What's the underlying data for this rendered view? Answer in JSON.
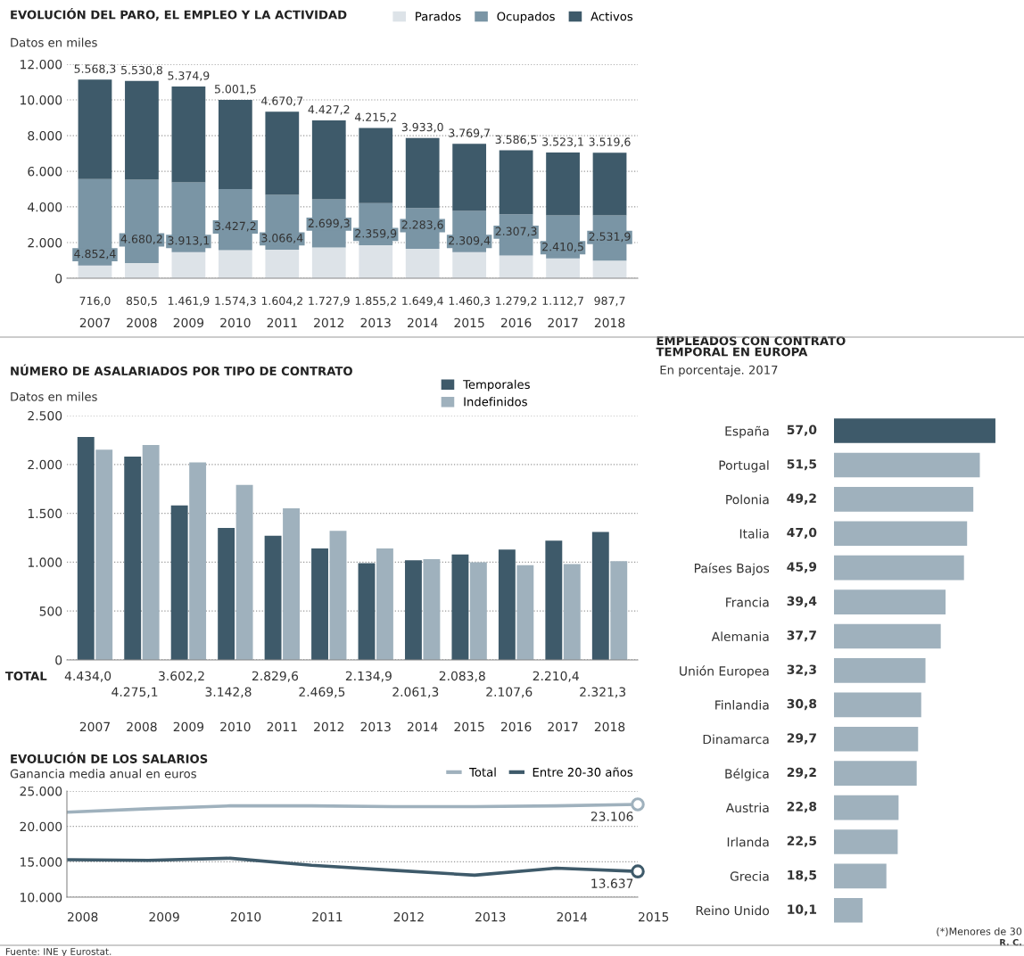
{
  "chart_data": [
    {
      "type": "bar",
      "stacked": true,
      "title": "EVOLUCIÓN DEL PARO, EL EMPLEO Y LA ACTIVIDAD",
      "subtitle": "Datos en miles",
      "categories": [
        "2007",
        "2008",
        "2009",
        "2010",
        "2011",
        "2012",
        "2013",
        "2014",
        "2015",
        "2016",
        "2017",
        "2018"
      ],
      "series": [
        {
          "name": "Parados",
          "color": "#dde3e8",
          "values": [
            716.0,
            850.5,
            1461.9,
            1574.3,
            1604.2,
            1727.9,
            1855.2,
            1649.4,
            1460.3,
            1279.2,
            1112.7,
            987.7
          ],
          "value_labels": [
            "716,0",
            "850,5",
            "1.461,9",
            "1.574,3",
            "1.604,2",
            "1.727,9",
            "1.855,2",
            "1.649,4",
            "1.460,3",
            "1.279,2",
            "1.112,7",
            "987,7"
          ]
        },
        {
          "name": "Ocupados",
          "color": "#7a95a5",
          "values": [
            4852.4,
            4680.2,
            3913.1,
            3427.2,
            3066.4,
            2699.3,
            2359.9,
            2283.6,
            2309.4,
            2307.3,
            2410.5,
            2531.9
          ],
          "value_labels": [
            "4.852,4",
            "4.680,2",
            "3.913,1",
            "3.427,2",
            "3.066,4",
            "2.699,3",
            "2.359,9",
            "2.283,6",
            "2.309,4",
            "2.307,3",
            "2.410,5",
            "2.531,9"
          ]
        },
        {
          "name": "Activos",
          "color": "#3e5a6a",
          "values": [
            5568.3,
            5530.8,
            5374.9,
            5001.5,
            4670.7,
            4427.2,
            4215.2,
            3933.0,
            3769.7,
            3586.5,
            3523.1,
            3519.6
          ],
          "value_labels": [
            "5.568,3",
            "5.530,8",
            "5.374,9",
            "5.001,5",
            "4.670,7",
            "4.427,2",
            "4.215,2",
            "3.933,0",
            "3.769,7",
            "3.586,5",
            "3.523,1",
            "3.519,6"
          ]
        }
      ],
      "ylim": [
        0,
        12000
      ],
      "yticks": [
        {
          "value": 0,
          "label": "0"
        },
        {
          "value": 2000,
          "label": "2.000"
        },
        {
          "value": 4000,
          "label": "4.000"
        },
        {
          "value": 6000,
          "label": "6.000"
        },
        {
          "value": 8000,
          "label": "8.000"
        },
        {
          "value": 10000,
          "label": "10.000"
        },
        {
          "value": 12000,
          "label": "12.000"
        }
      ],
      "grid": "y",
      "legend": "top right"
    },
    {
      "type": "bar",
      "title": "NÚMERO DE ASALARIADOS POR TIPO DE CONTRATO",
      "subtitle": "Datos en miles",
      "categories": [
        "2007",
        "2008",
        "2009",
        "2010",
        "2011",
        "2012",
        "2013",
        "2014",
        "2015",
        "2016",
        "2017",
        "2018"
      ],
      "series": [
        {
          "name": "Temporales",
          "color": "#3e5a6a",
          "values": [
            2280,
            2080,
            1580,
            1350,
            1270,
            1140,
            990,
            1020,
            1080,
            1130,
            1220,
            1310
          ]
        },
        {
          "name": "Indefinidos",
          "color": "#9fb1bd",
          "values": [
            2150,
            2200,
            2020,
            1790,
            1550,
            1320,
            1140,
            1030,
            1000,
            970,
            980,
            1010
          ]
        }
      ],
      "annotations": [
        "TOTAL",
        "4.434,0",
        "4.275,1",
        "3.602,2",
        "3.142,8",
        "2.829,6",
        "2.469,5",
        "2.134,9",
        "2.061,3",
        "2.083,8",
        "2.107,6",
        "2.210,4",
        "2.321,3"
      ],
      "ylim": [
        0,
        2500
      ],
      "yticks": [
        {
          "value": 0,
          "label": "0"
        },
        {
          "value": 500,
          "label": "500"
        },
        {
          "value": 1000,
          "label": "1.000"
        },
        {
          "value": 1500,
          "label": "1.500"
        },
        {
          "value": 2000,
          "label": "2.000"
        },
        {
          "value": 2500,
          "label": "2.500"
        }
      ],
      "grid": "y",
      "legend": "top right"
    },
    {
      "type": "line",
      "title": "EVOLUCIÓN DE LOS SALARIOS",
      "subtitle": "Ganancia media anual en euros",
      "categories": [
        "2008",
        "2009",
        "2010",
        "2011",
        "2012",
        "2013",
        "2014",
        "2015"
      ],
      "series": [
        {
          "name": "Total",
          "color": "#9fb1bd",
          "values": [
            22000,
            22500,
            22900,
            22900,
            22800,
            22800,
            22900,
            23106
          ],
          "value_labels": [
            null,
            null,
            null,
            null,
            null,
            null,
            null,
            "23.106"
          ]
        },
        {
          "name": "Entre 20-30 años",
          "color": "#3e5a6a",
          "values": [
            15300,
            15200,
            15500,
            14500,
            13800,
            13100,
            14100,
            13637
          ],
          "value_labels": [
            null,
            null,
            null,
            null,
            null,
            null,
            null,
            "13.637"
          ]
        }
      ],
      "annotations": [
        "Fuente: INE y Eurostat."
      ],
      "ylim": [
        10000,
        25000
      ],
      "yticks": [
        {
          "value": 10000,
          "label": "10.000"
        },
        {
          "value": 15000,
          "label": "15.000"
        },
        {
          "value": 20000,
          "label": "20.000"
        },
        {
          "value": 25000,
          "label": "25.000"
        }
      ],
      "grid": "y",
      "legend": "top right",
      "line_style": "solid"
    },
    {
      "type": "bar",
      "orientation": "horizontal",
      "title": "EMPLEADOS CON CONTRATO\nTEMPORAL EN EUROPA",
      "subtitle": "En porcentaje. 2017",
      "categories": [
        "España",
        "Portugal",
        "Polonia",
        "Italia",
        "Países Bajos",
        "Francia",
        "Alemania",
        "Unión Europea",
        "Finlandia",
        "Dinamarca",
        "Bélgica",
        "Austria",
        "Irlanda",
        "Grecia",
        "Reino Unido"
      ],
      "values": [
        57.0,
        51.5,
        49.2,
        47.0,
        45.9,
        39.4,
        37.7,
        32.3,
        30.8,
        29.7,
        29.2,
        22.8,
        22.5,
        18.5,
        10.1
      ],
      "value_labels": [
        "57,0",
        "51,5",
        "49,2",
        "47,0",
        "45,9",
        "39,4",
        "37,7",
        "32,3",
        "30,8",
        "29,7",
        "29,2",
        "22,8",
        "22,5",
        "18,5",
        "10,1"
      ],
      "colors": [
        "#3e5a6a",
        "#9fb1bd",
        "#9fb1bd",
        "#9fb1bd",
        "#9fb1bd",
        "#9fb1bd",
        "#9fb1bd",
        "#9fb1bd",
        "#9fb1bd",
        "#9fb1bd",
        "#9fb1bd",
        "#9fb1bd",
        "#9fb1bd",
        "#9fb1bd",
        "#9fb1bd"
      ],
      "tick_labels": "y",
      "annotations": [
        "(*)Menores de 30",
        "R. C."
      ]
    }
  ]
}
